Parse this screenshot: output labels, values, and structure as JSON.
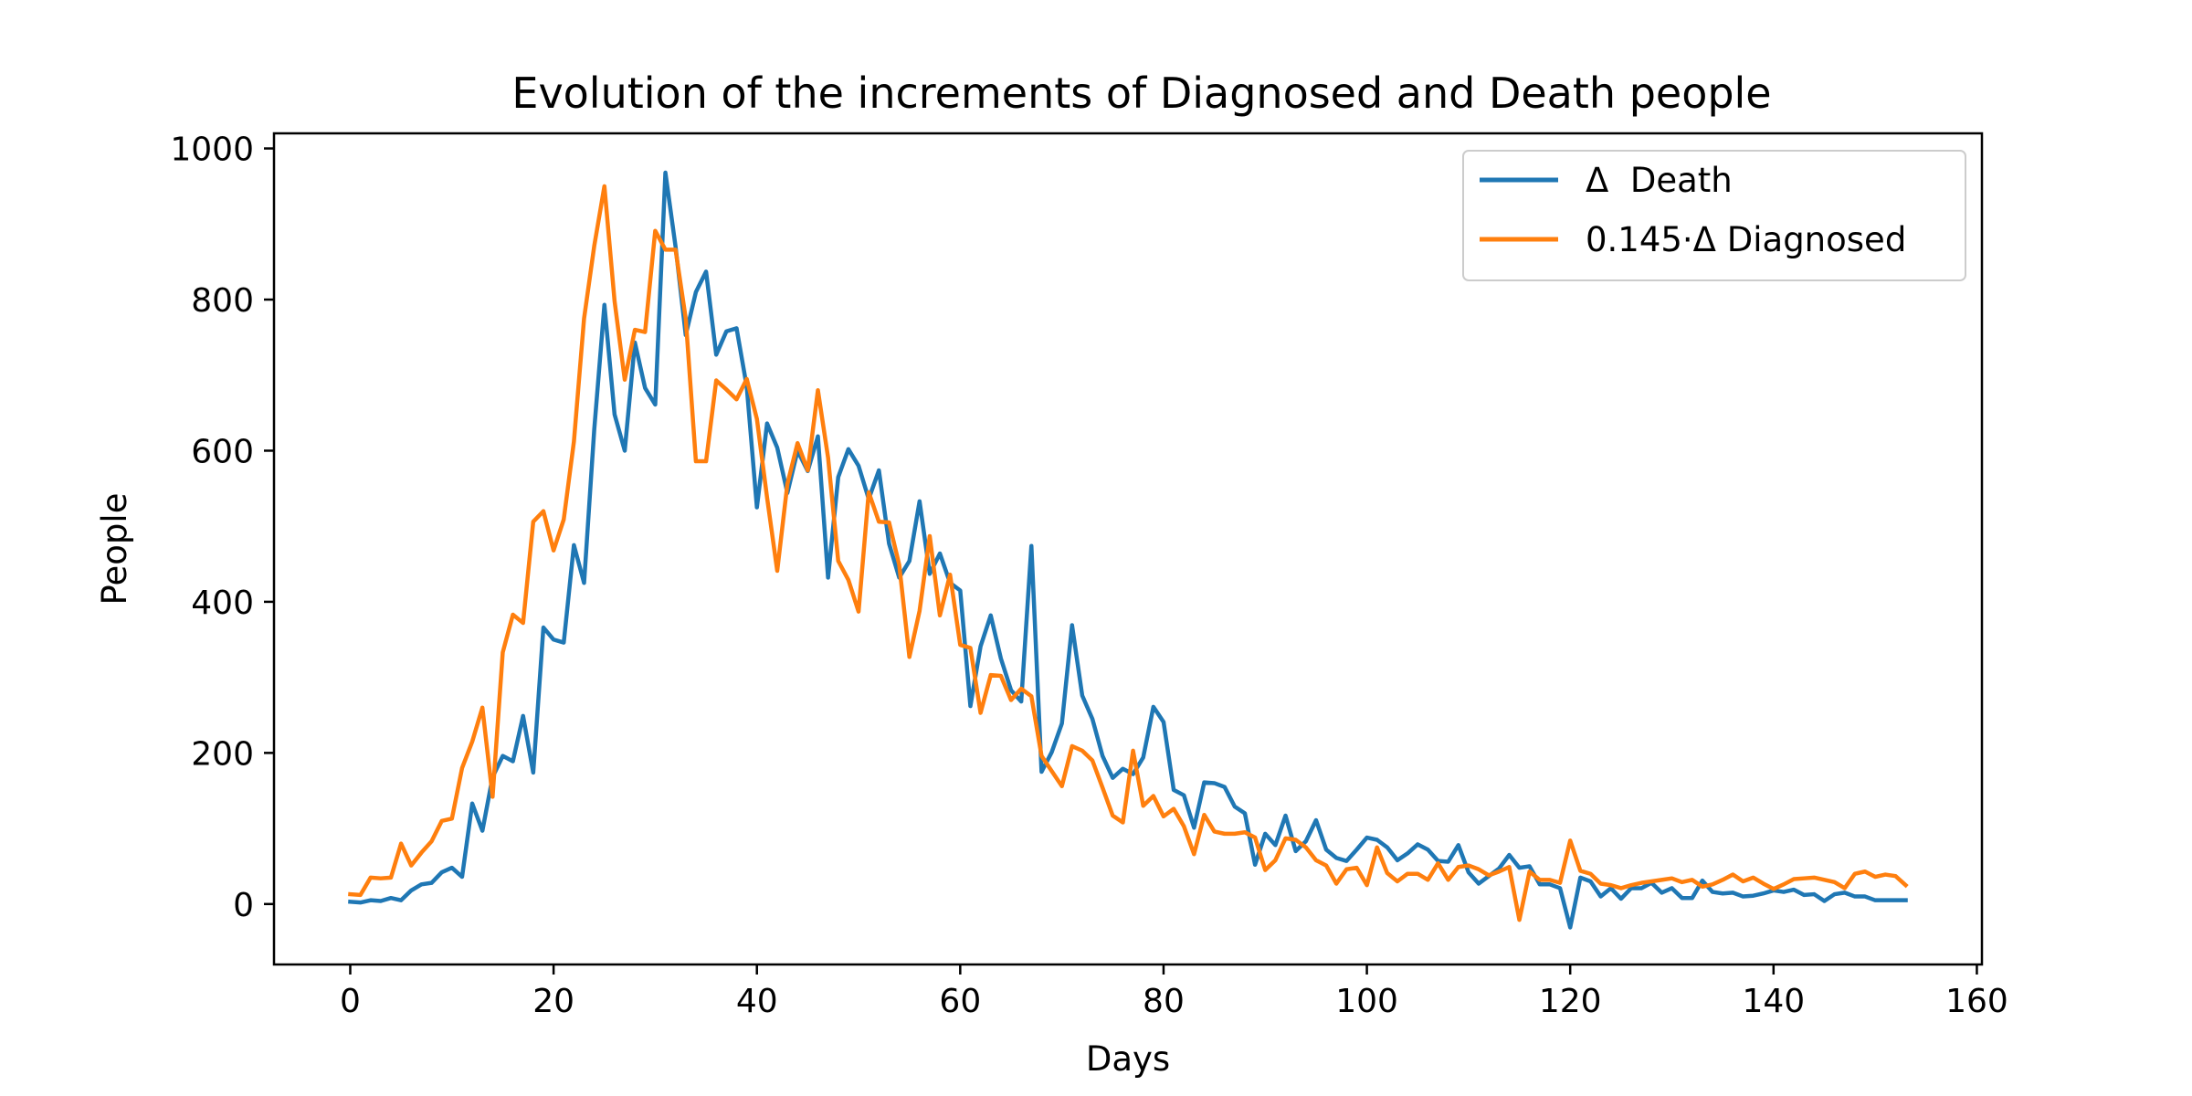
{
  "chart_data": {
    "type": "line",
    "title": "Evolution of the increments of Diagnosed and Death people",
    "xlabel": "Days",
    "ylabel": "People",
    "xlim": [
      -7.5,
      160.5
    ],
    "ylim": [
      -80,
      1020
    ],
    "xticks": [
      0,
      20,
      40,
      60,
      80,
      100,
      120,
      140,
      160
    ],
    "yticks": [
      0,
      200,
      400,
      600,
      800,
      1000
    ],
    "grid": false,
    "legend_position": "top-right",
    "series": [
      {
        "name": "Δ  Death",
        "color": "#1f77b4",
        "values": [
          3,
          2,
          5,
          4,
          8,
          5,
          18,
          26,
          28,
          42,
          48,
          36,
          133,
          97,
          168,
          196,
          189,
          249,
          174,
          366,
          350,
          346,
          475,
          425,
          628,
          793,
          648,
          600,
          743,
          683,
          661,
          968,
          870,
          753,
          810,
          837,
          727,
          758,
          762,
          685,
          525,
          636,
          604,
          544,
          600,
          573,
          619,
          432,
          565,
          602,
          580,
          536,
          574,
          477,
          432,
          454,
          533,
          437,
          464,
          425,
          415,
          262,
          341,
          382,
          325,
          283,
          268,
          474,
          175,
          201,
          239,
          369,
          276,
          245,
          196,
          167,
          179,
          172,
          194,
          261,
          241,
          151,
          144,
          101,
          161,
          160,
          155,
          129,
          120,
          52,
          93,
          78,
          117,
          70,
          83,
          111,
          72,
          61,
          57,
          72,
          88,
          85,
          75,
          58,
          67,
          79,
          72,
          57,
          56,
          78,
          42,
          27,
          37,
          47,
          65,
          48,
          50,
          26,
          26,
          21,
          -31,
          35,
          30,
          10,
          21,
          7,
          21,
          21,
          28,
          15,
          21,
          8,
          8,
          31,
          16,
          14,
          15,
          10,
          11,
          14,
          18,
          16,
          19,
          12,
          13,
          4,
          13,
          15,
          10,
          10,
          5,
          5,
          5,
          5
        ]
      },
      {
        "name": "0.145·Δ Diagnosed",
        "color": "#ff7f0e",
        "values": [
          13,
          12,
          35,
          34,
          35,
          80,
          51,
          68,
          83,
          110,
          113,
          180,
          215,
          260,
          142,
          333,
          383,
          372,
          506,
          520,
          468,
          509,
          612,
          775,
          871,
          950,
          798,
          694,
          760,
          757,
          891,
          866,
          866,
          775,
          586,
          586,
          693,
          681,
          668,
          695,
          642,
          538,
          441,
          556,
          610,
          574,
          680,
          591,
          454,
          429,
          387,
          545,
          506,
          505,
          449,
          327,
          388,
          487,
          382,
          436,
          343,
          339,
          253,
          303,
          302,
          270,
          285,
          275,
          196,
          176,
          156,
          209,
          203,
          190,
          154,
          117,
          108,
          203,
          130,
          143,
          116,
          126,
          103,
          66,
          118,
          96,
          93,
          93,
          95,
          88,
          45,
          58,
          87,
          85,
          75,
          58,
          51,
          27,
          46,
          48,
          25,
          75,
          41,
          30,
          40,
          40,
          32,
          54,
          32,
          49,
          51,
          46,
          38,
          43,
          49,
          -21,
          43,
          32,
          32,
          28,
          84,
          44,
          40,
          27,
          25,
          21,
          25,
          28,
          30,
          32,
          34,
          29,
          32,
          23,
          26,
          32,
          39,
          30,
          35,
          27,
          20,
          26,
          33,
          34,
          35,
          32,
          29,
          21,
          40,
          43,
          36,
          39,
          37,
          25
        ]
      }
    ]
  }
}
